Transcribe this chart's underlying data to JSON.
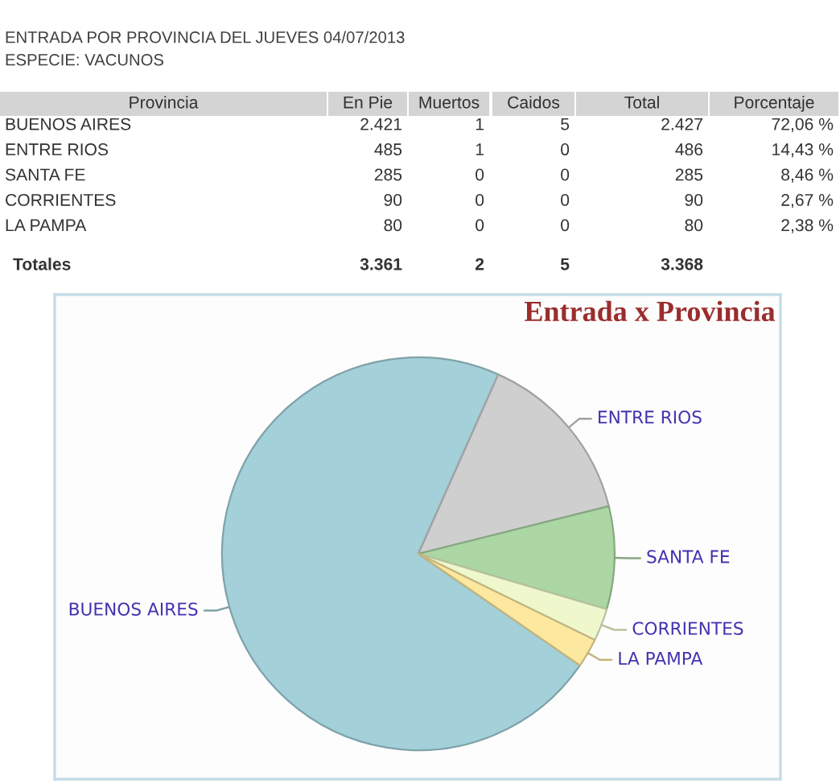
{
  "chart_data": [
    {
      "type": "other",
      "title": "ENTRADA POR PROVINCIA DEL JUEVES 04/07/2013",
      "subtitle": "ESPECIE: VACUNOS",
      "categories": [
        "Provincia",
        "En Pie",
        "Muertos",
        "Caidos",
        "Total",
        "Porcentaje"
      ],
      "cell_labels": [
        [
          "BUENOS AIRES",
          "2.421",
          "1",
          "5",
          "2.427",
          "72,06 %"
        ],
        [
          "ENTRE RIOS",
          "485",
          "1",
          "0",
          "486",
          "14,43 %"
        ],
        [
          "SANTA FE",
          "285",
          "0",
          "0",
          "285",
          "8,46 %"
        ],
        [
          "CORRIENTES",
          "90",
          "0",
          "0",
          "90",
          "2,67 %"
        ],
        [
          "LA PAMPA",
          "80",
          "0",
          "0",
          "80",
          "2,38 %"
        ]
      ],
      "totals": [
        "Totales",
        "3.361",
        "2",
        "5",
        "3.368",
        null
      ]
    },
    {
      "type": "pie",
      "title": "Entrada x Provincia",
      "categories": [
        "BUENOS AIRES",
        "ENTRE RIOS",
        "SANTA FE",
        "CORRIENTES",
        "LA PAMPA"
      ],
      "values": [
        72.06,
        14.43,
        8.46,
        2.67,
        2.38
      ],
      "colors": [
        "#a3d0d9",
        "#cfcfcf",
        "#acd6a4",
        "#eef8cc",
        "#fde8a0"
      ]
    }
  ]
}
